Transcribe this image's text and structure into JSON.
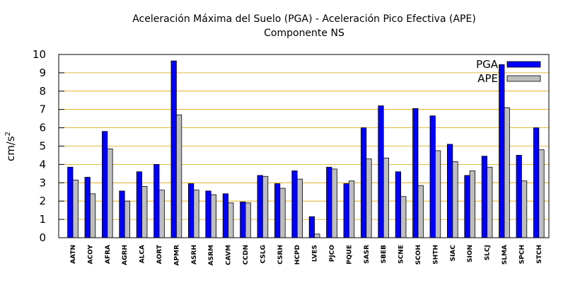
{
  "chart_data": {
    "type": "bar",
    "title": "Aceleración Máxima del Suelo (PGA) -  Aceleración Pico Efectiva (APE)",
    "subtitle": "Componente NS",
    "ylabel": "cm/s²",
    "ylabel_base": "cm/s",
    "ylabel_exp": "2",
    "xlabel": "",
    "ylim": [
      0,
      10
    ],
    "yticks": [
      0,
      1,
      2,
      3,
      4,
      5,
      6,
      7,
      8,
      9,
      10
    ],
    "grid": "horizontal",
    "legend_position": "top-right",
    "categories": [
      "AATN",
      "ACOY",
      "AFRA",
      "AGRH",
      "ALCA",
      "AORT",
      "APMR",
      "ASRH",
      "ASRM",
      "CAVM",
      "CCDN",
      "CSLG",
      "CSRH",
      "HCPD",
      "LVES",
      "PJCO",
      "PQUE",
      "SASR",
      "SBEB",
      "SCNE",
      "SCOH",
      "SHTH",
      "SIAC",
      "SION",
      "SLCJ",
      "SLMA",
      "SPCH",
      "STCH"
    ],
    "series": [
      {
        "name": "PGA",
        "color": "#0000ff",
        "values": [
          3.85,
          3.3,
          5.8,
          2.55,
          3.6,
          4.0,
          9.65,
          2.95,
          2.55,
          2.4,
          1.95,
          3.4,
          2.95,
          3.65,
          1.15,
          3.85,
          2.95,
          6.0,
          7.2,
          3.6,
          7.05,
          6.65,
          5.1,
          3.4,
          4.45,
          9.45,
          4.5,
          6.0
        ]
      },
      {
        "name": "APE",
        "color": "#bebebe",
        "values": [
          3.15,
          2.4,
          4.85,
          2.0,
          2.8,
          2.6,
          6.7,
          2.6,
          2.35,
          1.9,
          1.9,
          3.35,
          2.7,
          3.2,
          0.2,
          3.75,
          3.1,
          4.3,
          4.35,
          2.25,
          2.85,
          4.75,
          4.15,
          3.65,
          3.85,
          7.1,
          3.1,
          4.8
        ]
      }
    ]
  }
}
